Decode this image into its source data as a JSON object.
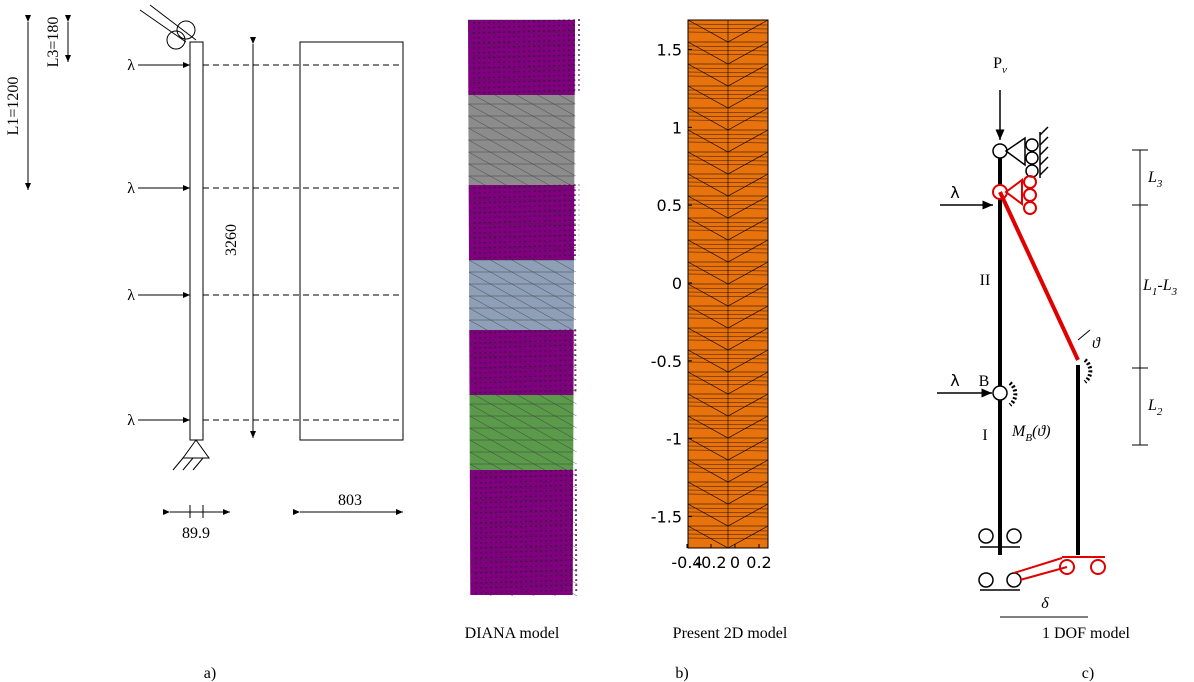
{
  "panel_a": {
    "dim_L1": "L1=1200",
    "dim_L3": "L3=180",
    "dim_height": "3260",
    "dim_thickness": "89.9",
    "dim_width": "803",
    "load_labels": [
      "λ",
      "λ",
      "λ",
      "λ"
    ]
  },
  "panel_b": {
    "diana_caption": "DIANA model",
    "plot_caption": "Present 2D model",
    "plot": {
      "yticks": [
        1.5,
        1,
        0.5,
        0,
        -0.5,
        -1,
        -1.5
      ],
      "xticks": [
        -0.4,
        -0.2,
        0,
        0.2
      ]
    }
  },
  "panel_c": {
    "caption": "1 DOF model",
    "load_P": [
      "P",
      "v"
    ],
    "load_labels": [
      "λ",
      "λ"
    ],
    "hinge": "B",
    "segment_upper": "II",
    "segment_lower": "I",
    "angle": "ϑ",
    "moment": [
      "M",
      "B",
      "(ϑ)"
    ],
    "displacement": "δ",
    "L3": [
      "L",
      "3"
    ],
    "L1_L3": [
      "L",
      "1",
      "-L",
      "3"
    ],
    "L2": [
      "L",
      "2"
    ]
  },
  "panel_labels": [
    "a)",
    "b)",
    "c)"
  ]
}
